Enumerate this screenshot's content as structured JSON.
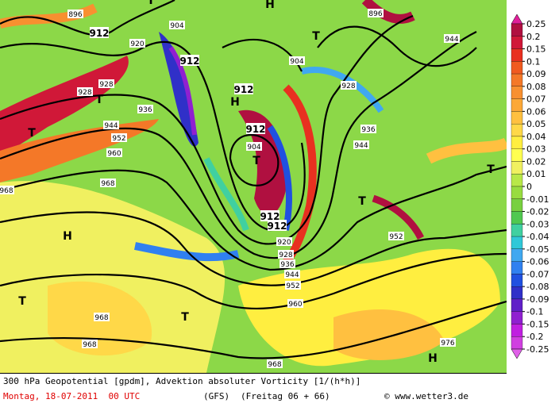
{
  "colorbar": {
    "levels": [
      0.25,
      0.2,
      0.15,
      0.1,
      0.09,
      0.08,
      0.07,
      0.06,
      0.05,
      0.04,
      0.03,
      0.02,
      0.01,
      0,
      -0.01,
      -0.02,
      -0.03,
      -0.04,
      -0.05,
      -0.06,
      -0.07,
      -0.08,
      -0.09,
      -0.1,
      -0.15,
      -0.2,
      -0.25
    ],
    "colors": [
      "#e0209a",
      "#b01040",
      "#d01838",
      "#e83020",
      "#f05a20",
      "#f47828",
      "#f89030",
      "#fca838",
      "#ffc040",
      "#ffd848",
      "#ffee40",
      "#ffff50",
      "#f0f060",
      "#b8e848",
      "#98dc40",
      "#78d040",
      "#50c850",
      "#40d0a0",
      "#30c8d8",
      "#40a8f0",
      "#3080f0",
      "#2050e0",
      "#3030c8",
      "#6020c8",
      "#9020d0",
      "#c020e0",
      "#d040e0",
      "#e060e8"
    ]
  },
  "contour_labels": [
    896,
    912,
    920,
    928,
    904,
    912,
    912,
    936,
    944,
    952,
    960,
    968,
    968,
    912,
    904,
    912,
    912,
    920,
    928,
    936,
    944,
    952,
    960,
    968,
    968,
    904,
    928,
    936,
    944,
    952,
    896,
    928,
    944,
    976,
    968
  ],
  "centers": [
    "T",
    "H",
    "T",
    "T",
    "T",
    "H",
    "T",
    "T",
    "T",
    "T",
    "T",
    "H",
    "H"
  ],
  "footer": {
    "title": "300 hPa Geopotential [gpdm], Advektion absoluter Vorticity [1/(h*h)]",
    "date": "Montag, 18-07-2011  00 UTC",
    "model": "(GFS)",
    "forecast": "(Freitag 06 + 66)",
    "copyright": "© www.wetter3.de"
  }
}
